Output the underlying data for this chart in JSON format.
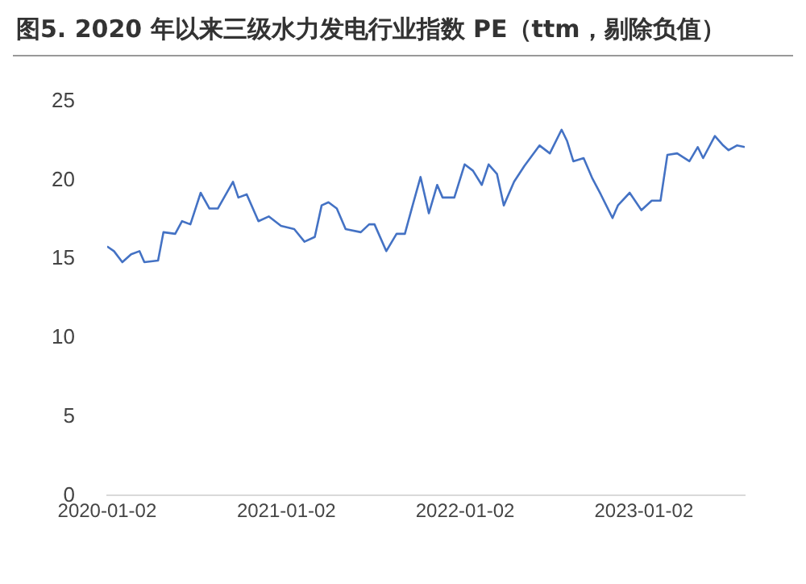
{
  "chart_data": {
    "type": "line",
    "title": "图5. 2020 年以来三级水力发电行业指数 PE（ttm，剔除负值）",
    "x": [
      "2020-01-02",
      "2020-01-16",
      "2020-02-02",
      "2020-02-20",
      "2020-03-08",
      "2020-03-18",
      "2020-04-15",
      "2020-04-26",
      "2020-05-20",
      "2020-06-03",
      "2020-06-20",
      "2020-07-11",
      "2020-07-29",
      "2020-08-15",
      "2020-09-15",
      "2020-09-26",
      "2020-10-13",
      "2020-11-06",
      "2020-11-27",
      "2020-12-22",
      "2021-01-18",
      "2021-02-08",
      "2021-03-01",
      "2021-03-15",
      "2021-03-29",
      "2021-04-15",
      "2021-05-03",
      "2021-06-03",
      "2021-06-20",
      "2021-07-01",
      "2021-07-25",
      "2021-08-15",
      "2021-09-01",
      "2021-09-15",
      "2021-10-03",
      "2021-10-20",
      "2021-11-06",
      "2021-11-17",
      "2021-12-11",
      "2022-01-01",
      "2022-01-18",
      "2022-02-05",
      "2022-02-19",
      "2022-03-08",
      "2022-03-22",
      "2022-04-12",
      "2022-05-03",
      "2022-06-03",
      "2022-06-24",
      "2022-07-18",
      "2022-07-29",
      "2022-08-11",
      "2022-09-01",
      "2022-09-19",
      "2022-10-06",
      "2022-10-30",
      "2022-11-10",
      "2022-12-04",
      "2022-12-28",
      "2023-01-18",
      "2023-02-05",
      "2023-02-19",
      "2023-03-11",
      "2023-04-05",
      "2023-04-22",
      "2023-05-03",
      "2023-05-27",
      "2023-06-13",
      "2023-06-24",
      "2023-07-11",
      "2023-07-27"
    ],
    "series": [
      {
        "color": "#4472c4",
        "values": [
          15.8,
          15.5,
          14.8,
          15.3,
          15.5,
          14.8,
          14.9,
          16.7,
          16.6,
          17.4,
          17.2,
          19.2,
          18.2,
          18.2,
          19.9,
          18.9,
          19.1,
          17.4,
          17.7,
          17.1,
          16.9,
          16.1,
          16.4,
          18.4,
          18.6,
          18.2,
          16.9,
          16.7,
          17.2,
          17.2,
          15.5,
          16.6,
          16.6,
          18.2,
          20.2,
          17.9,
          19.7,
          18.9,
          18.9,
          21.0,
          20.6,
          19.7,
          21.0,
          20.4,
          18.4,
          19.9,
          20.9,
          22.2,
          21.7,
          23.2,
          22.5,
          21.2,
          21.4,
          20.1,
          19.1,
          17.6,
          18.4,
          19.2,
          18.1,
          18.7,
          18.7,
          21.6,
          21.7,
          21.2,
          22.1,
          21.4,
          22.8,
          22.2,
          21.9,
          22.2,
          22.1
        ]
      }
    ],
    "xlim": [
      "2020-01-02",
      "2023-07-27"
    ],
    "xticks": [
      "2020-01-02",
      "2021-01-02",
      "2022-01-02",
      "2023-01-02"
    ],
    "ylim": [
      0,
      25
    ],
    "yticks": [
      0,
      5,
      10,
      15,
      20,
      25
    ],
    "grid": false,
    "legend": false,
    "marker": "none",
    "line_style": "solid"
  }
}
